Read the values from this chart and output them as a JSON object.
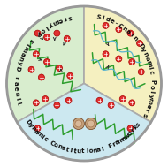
{
  "sections": [
    {
      "label": "Linear Dynamic Polymers",
      "color": "#d8edce"
    },
    {
      "label": "Side-Chain Dynamic Polymers",
      "color": "#f5f0c0"
    },
    {
      "label": "Dynamic Constitutional Frameworks",
      "color": "#cce8f0"
    }
  ],
  "circle_edge_color": "#999999",
  "circle_linewidth": 2.0,
  "divider_color": "#aaaaaa",
  "divider_linewidth": 1.2,
  "background": "#ffffff",
  "label_fontsize": 5.0,
  "label_color": "#111111",
  "green_chain": "#2e9e2e",
  "blue_chain": "#5ab4d0",
  "red_dot_face": "#e03030",
  "red_dot_edge": "#aa0000",
  "arrow_color": "#333333"
}
